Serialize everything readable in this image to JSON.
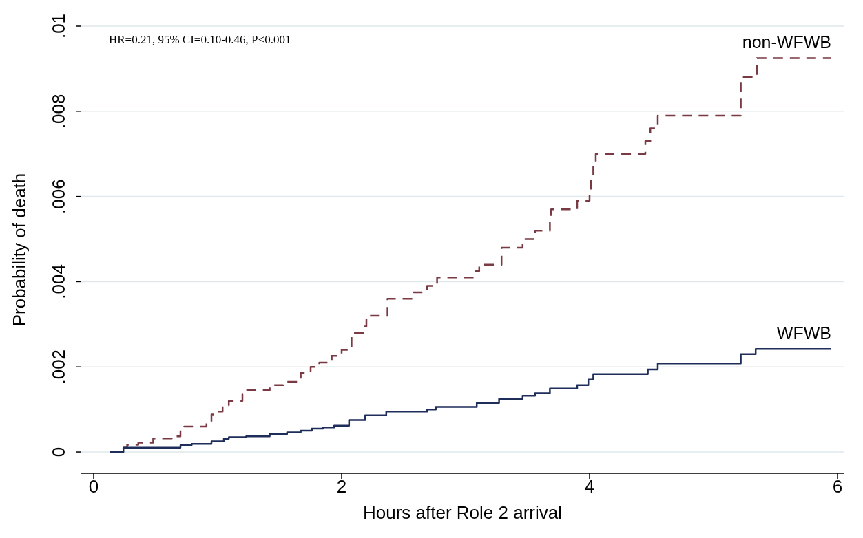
{
  "chart_data": {
    "type": "step",
    "xlabel": "Hours after Role 2 arrival",
    "ylabel": "Probability of death",
    "annotations": [
      "HR=0.21, 95% CI=0.10-0.46, P<0.001"
    ],
    "xlim": [
      -0.1,
      6.05
    ],
    "xticks": [
      0,
      2,
      4,
      6
    ],
    "ylim": [
      -0.0005,
      0.01
    ],
    "yticks": [
      0,
      {
        "value": 0.002,
        "label": ".002"
      },
      {
        "value": 0.004,
        "label": ".004"
      },
      {
        "value": 0.006,
        "label": ".006"
      },
      {
        "value": 0.008,
        "label": ".008"
      },
      {
        "value": 0.01,
        "label": ".01"
      }
    ],
    "grid": "y",
    "legend": false,
    "series": [
      {
        "name": "non-WFWB",
        "color": "#7a3a44",
        "line_style": "dashed",
        "x": [
          0.13,
          0.24,
          0.27,
          0.36,
          0.48,
          0.63,
          0.7,
          0.73,
          0.91,
          0.95,
          0.98,
          1.04,
          1.09,
          1.2,
          1.23,
          1.42,
          1.53,
          1.67,
          1.75,
          1.82,
          1.92,
          2.0,
          2.08,
          2.18,
          2.2,
          2.37,
          2.58,
          2.69,
          2.77,
          3.08,
          3.11,
          3.29,
          3.46,
          3.56,
          3.68,
          3.69,
          3.9,
          4.0,
          4.01,
          4.03,
          4.05,
          4.45,
          4.49,
          4.55,
          5.22,
          5.35,
          5.95
        ],
        "values": [
          0,
          0.0001,
          0.00017,
          0.00022,
          0.00032,
          0.00037,
          0.00055,
          0.0006,
          0.0007,
          0.00088,
          0.00095,
          0.0011,
          0.0012,
          0.00137,
          0.00145,
          0.00157,
          0.00165,
          0.00186,
          0.002,
          0.0021,
          0.00226,
          0.0024,
          0.0028,
          0.00295,
          0.0032,
          0.0036,
          0.00375,
          0.0039,
          0.0041,
          0.00425,
          0.0044,
          0.0048,
          0.005,
          0.0052,
          0.0055,
          0.0057,
          0.0059,
          0.0061,
          0.0064,
          0.0068,
          0.007,
          0.0073,
          0.0076,
          0.0079,
          0.0088,
          0.00925,
          0.00925
        ]
      },
      {
        "name": "WFWB",
        "color": "#1f2d5a",
        "line_style": "solid",
        "x": [
          0.13,
          0.24,
          0.41,
          0.55,
          0.7,
          0.79,
          0.95,
          1.05,
          1.09,
          1.23,
          1.42,
          1.56,
          1.67,
          1.76,
          1.85,
          1.94,
          2.06,
          2.19,
          2.36,
          2.69,
          2.76,
          3.09,
          3.27,
          3.46,
          3.56,
          3.68,
          3.9,
          3.99,
          4.03,
          4.47,
          4.55,
          5.22,
          5.34,
          5.95
        ],
        "values": [
          0,
          0.0001,
          0.0001,
          0.0001,
          0.00016,
          0.00019,
          0.00025,
          0.00031,
          0.00035,
          0.00037,
          0.00042,
          0.00046,
          0.0005,
          0.00055,
          0.00058,
          0.00062,
          0.00075,
          0.00086,
          0.00095,
          0.001,
          0.00106,
          0.00115,
          0.00125,
          0.00132,
          0.00138,
          0.00149,
          0.00157,
          0.0017,
          0.00183,
          0.00194,
          0.00208,
          0.0023,
          0.00242,
          0.00242
        ]
      }
    ]
  }
}
